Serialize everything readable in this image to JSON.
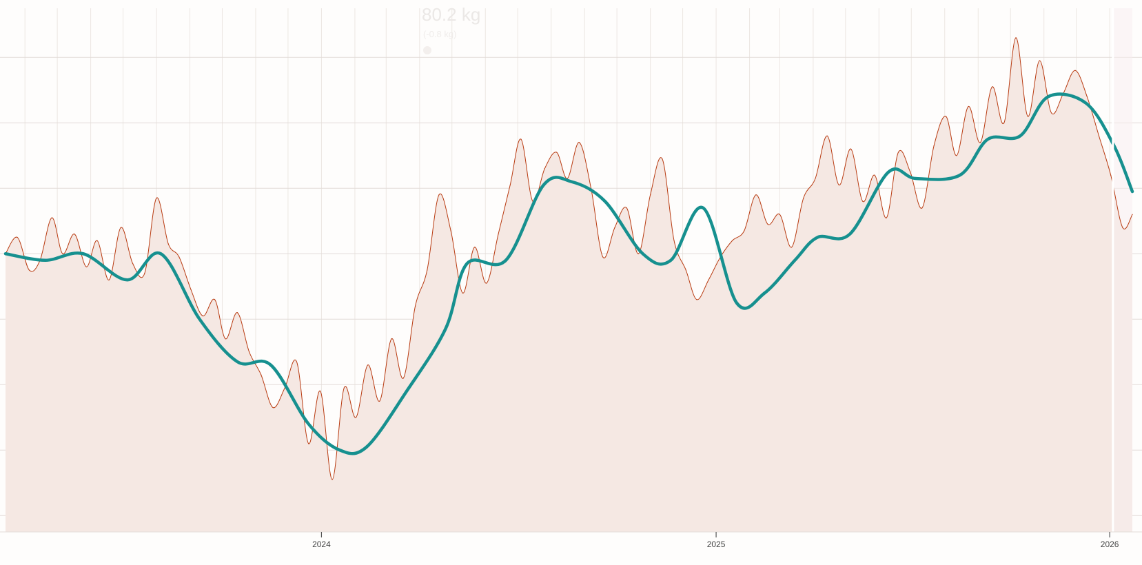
{
  "chart_data": {
    "type": "line",
    "title": "",
    "xlabel": "",
    "ylabel": "",
    "x_range": [
      "2023-03-14",
      "2026-01-22"
    ],
    "x_ticks": [
      {
        "date": "2024-01-01",
        "label": "2024"
      },
      {
        "date": "2025-01-01",
        "label": "2025"
      },
      {
        "date": "2026-01-01",
        "label": "2026"
      }
    ],
    "y_range": [
      70.5,
      86.5
    ],
    "y_grid": [
      71,
      73,
      75,
      77,
      79,
      81,
      83,
      85
    ],
    "grid": true,
    "tooltip": {
      "value_text": "80.2 kg",
      "sub_text": "(-0.8 kg)"
    },
    "series": [
      {
        "kind": "raw",
        "color": "#b83a10",
        "fill": "#f5e8e3",
        "values": [
          [
            "2023-03-14",
            79.0
          ],
          [
            "2023-03-25",
            79.5
          ],
          [
            "2023-04-05",
            78.5
          ],
          [
            "2023-04-15",
            78.8
          ],
          [
            "2023-04-26",
            80.1
          ],
          [
            "2023-05-06",
            79.0
          ],
          [
            "2023-05-17",
            79.6
          ],
          [
            "2023-05-28",
            78.6
          ],
          [
            "2023-06-07",
            79.4
          ],
          [
            "2023-06-18",
            78.2
          ],
          [
            "2023-06-29",
            79.8
          ],
          [
            "2023-07-10",
            78.7
          ],
          [
            "2023-07-21",
            78.4
          ],
          [
            "2023-08-01",
            80.7
          ],
          [
            "2023-08-12",
            79.3
          ],
          [
            "2023-08-22",
            78.9
          ],
          [
            "2023-09-02",
            77.9
          ],
          [
            "2023-09-13",
            77.1
          ],
          [
            "2023-09-24",
            77.6
          ],
          [
            "2023-10-04",
            76.4
          ],
          [
            "2023-10-15",
            77.2
          ],
          [
            "2023-10-26",
            76.0
          ],
          [
            "2023-11-06",
            75.3
          ],
          [
            "2023-11-17",
            74.3
          ],
          [
            "2023-11-28",
            74.9
          ],
          [
            "2023-12-09",
            75.7
          ],
          [
            "2023-12-20",
            73.2
          ],
          [
            "2023-12-31",
            74.8
          ],
          [
            "2024-01-11",
            72.1
          ],
          [
            "2024-01-22",
            74.9
          ],
          [
            "2024-02-02",
            74.0
          ],
          [
            "2024-02-13",
            75.6
          ],
          [
            "2024-02-24",
            74.5
          ],
          [
            "2024-03-06",
            76.4
          ],
          [
            "2024-03-17",
            75.2
          ],
          [
            "2024-03-28",
            77.4
          ],
          [
            "2024-04-08",
            78.5
          ],
          [
            "2024-04-19",
            80.8
          ],
          [
            "2024-04-30",
            79.7
          ],
          [
            "2024-05-11",
            77.8
          ],
          [
            "2024-05-22",
            79.2
          ],
          [
            "2024-06-02",
            78.1
          ],
          [
            "2024-06-13",
            79.6
          ],
          [
            "2024-06-24",
            81.1
          ],
          [
            "2024-07-04",
            82.5
          ],
          [
            "2024-07-15",
            80.6
          ],
          [
            "2024-07-26",
            81.6
          ],
          [
            "2024-08-06",
            82.1
          ],
          [
            "2024-08-16",
            81.3
          ],
          [
            "2024-08-27",
            82.4
          ],
          [
            "2024-09-07",
            81.0
          ],
          [
            "2024-09-18",
            78.9
          ],
          [
            "2024-09-29",
            79.8
          ],
          [
            "2024-10-10",
            80.4
          ],
          [
            "2024-10-21",
            79.0
          ],
          [
            "2024-11-01",
            80.8
          ],
          [
            "2024-11-12",
            81.9
          ],
          [
            "2024-11-23",
            79.4
          ],
          [
            "2024-12-04",
            78.5
          ],
          [
            "2024-12-14",
            77.6
          ],
          [
            "2024-12-25",
            78.2
          ],
          [
            "2025-01-05",
            78.9
          ],
          [
            "2025-01-16",
            79.4
          ],
          [
            "2025-01-27",
            79.7
          ],
          [
            "2025-02-07",
            80.8
          ],
          [
            "2025-02-18",
            79.9
          ],
          [
            "2025-03-01",
            80.2
          ],
          [
            "2025-03-12",
            79.2
          ],
          [
            "2025-03-23",
            80.7
          ],
          [
            "2025-04-03",
            81.3
          ],
          [
            "2025-04-14",
            82.6
          ],
          [
            "2025-04-25",
            81.1
          ],
          [
            "2025-05-06",
            82.2
          ],
          [
            "2025-05-17",
            80.6
          ],
          [
            "2025-05-28",
            81.4
          ],
          [
            "2025-06-08",
            80.1
          ],
          [
            "2025-06-19",
            82.1
          ],
          [
            "2025-06-30",
            81.5
          ],
          [
            "2025-07-11",
            80.4
          ],
          [
            "2025-07-22",
            82.3
          ],
          [
            "2025-08-02",
            83.2
          ],
          [
            "2025-08-12",
            82.0
          ],
          [
            "2025-08-23",
            83.5
          ],
          [
            "2025-09-03",
            82.4
          ],
          [
            "2025-09-14",
            84.1
          ],
          [
            "2025-09-25",
            83.0
          ],
          [
            "2025-10-06",
            85.6
          ],
          [
            "2025-10-17",
            83.2
          ],
          [
            "2025-10-28",
            84.9
          ],
          [
            "2025-11-08",
            83.3
          ],
          [
            "2025-11-19",
            83.9
          ],
          [
            "2025-11-30",
            84.6
          ],
          [
            "2025-12-11",
            83.8
          ],
          [
            "2025-12-22",
            82.6
          ],
          [
            "2026-01-02",
            81.4
          ],
          [
            "2026-01-13",
            79.8
          ],
          [
            "2026-01-22",
            80.2
          ]
        ]
      },
      {
        "kind": "trend",
        "color": "#16908f",
        "values": [
          [
            "2023-03-14",
            79.0
          ],
          [
            "2023-04-20",
            78.8
          ],
          [
            "2023-05-25",
            79.0
          ],
          [
            "2023-07-05",
            78.2
          ],
          [
            "2023-08-05",
            79.0
          ],
          [
            "2023-09-10",
            77.0
          ],
          [
            "2023-10-15",
            75.7
          ],
          [
            "2023-11-15",
            75.6
          ],
          [
            "2023-12-20",
            73.8
          ],
          [
            "2024-01-18",
            73.0
          ],
          [
            "2024-02-12",
            73.1
          ],
          [
            "2024-03-20",
            74.8
          ],
          [
            "2024-04-25",
            76.7
          ],
          [
            "2024-05-15",
            78.7
          ],
          [
            "2024-06-20",
            78.8
          ],
          [
            "2024-07-25",
            81.1
          ],
          [
            "2024-08-20",
            81.2
          ],
          [
            "2024-09-20",
            80.6
          ],
          [
            "2024-10-25",
            79.0
          ],
          [
            "2024-11-20",
            78.8
          ],
          [
            "2024-12-20",
            80.4
          ],
          [
            "2025-01-20",
            77.5
          ],
          [
            "2025-02-15",
            77.8
          ],
          [
            "2025-03-15",
            78.8
          ],
          [
            "2025-04-05",
            79.5
          ],
          [
            "2025-05-05",
            79.6
          ],
          [
            "2025-06-10",
            81.5
          ],
          [
            "2025-07-05",
            81.3
          ],
          [
            "2025-08-15",
            81.4
          ],
          [
            "2025-09-10",
            82.5
          ],
          [
            "2025-10-10",
            82.6
          ],
          [
            "2025-11-05",
            83.8
          ],
          [
            "2025-12-10",
            83.6
          ],
          [
            "2026-01-05",
            82.3
          ],
          [
            "2026-01-22",
            80.9
          ]
        ]
      }
    ]
  }
}
